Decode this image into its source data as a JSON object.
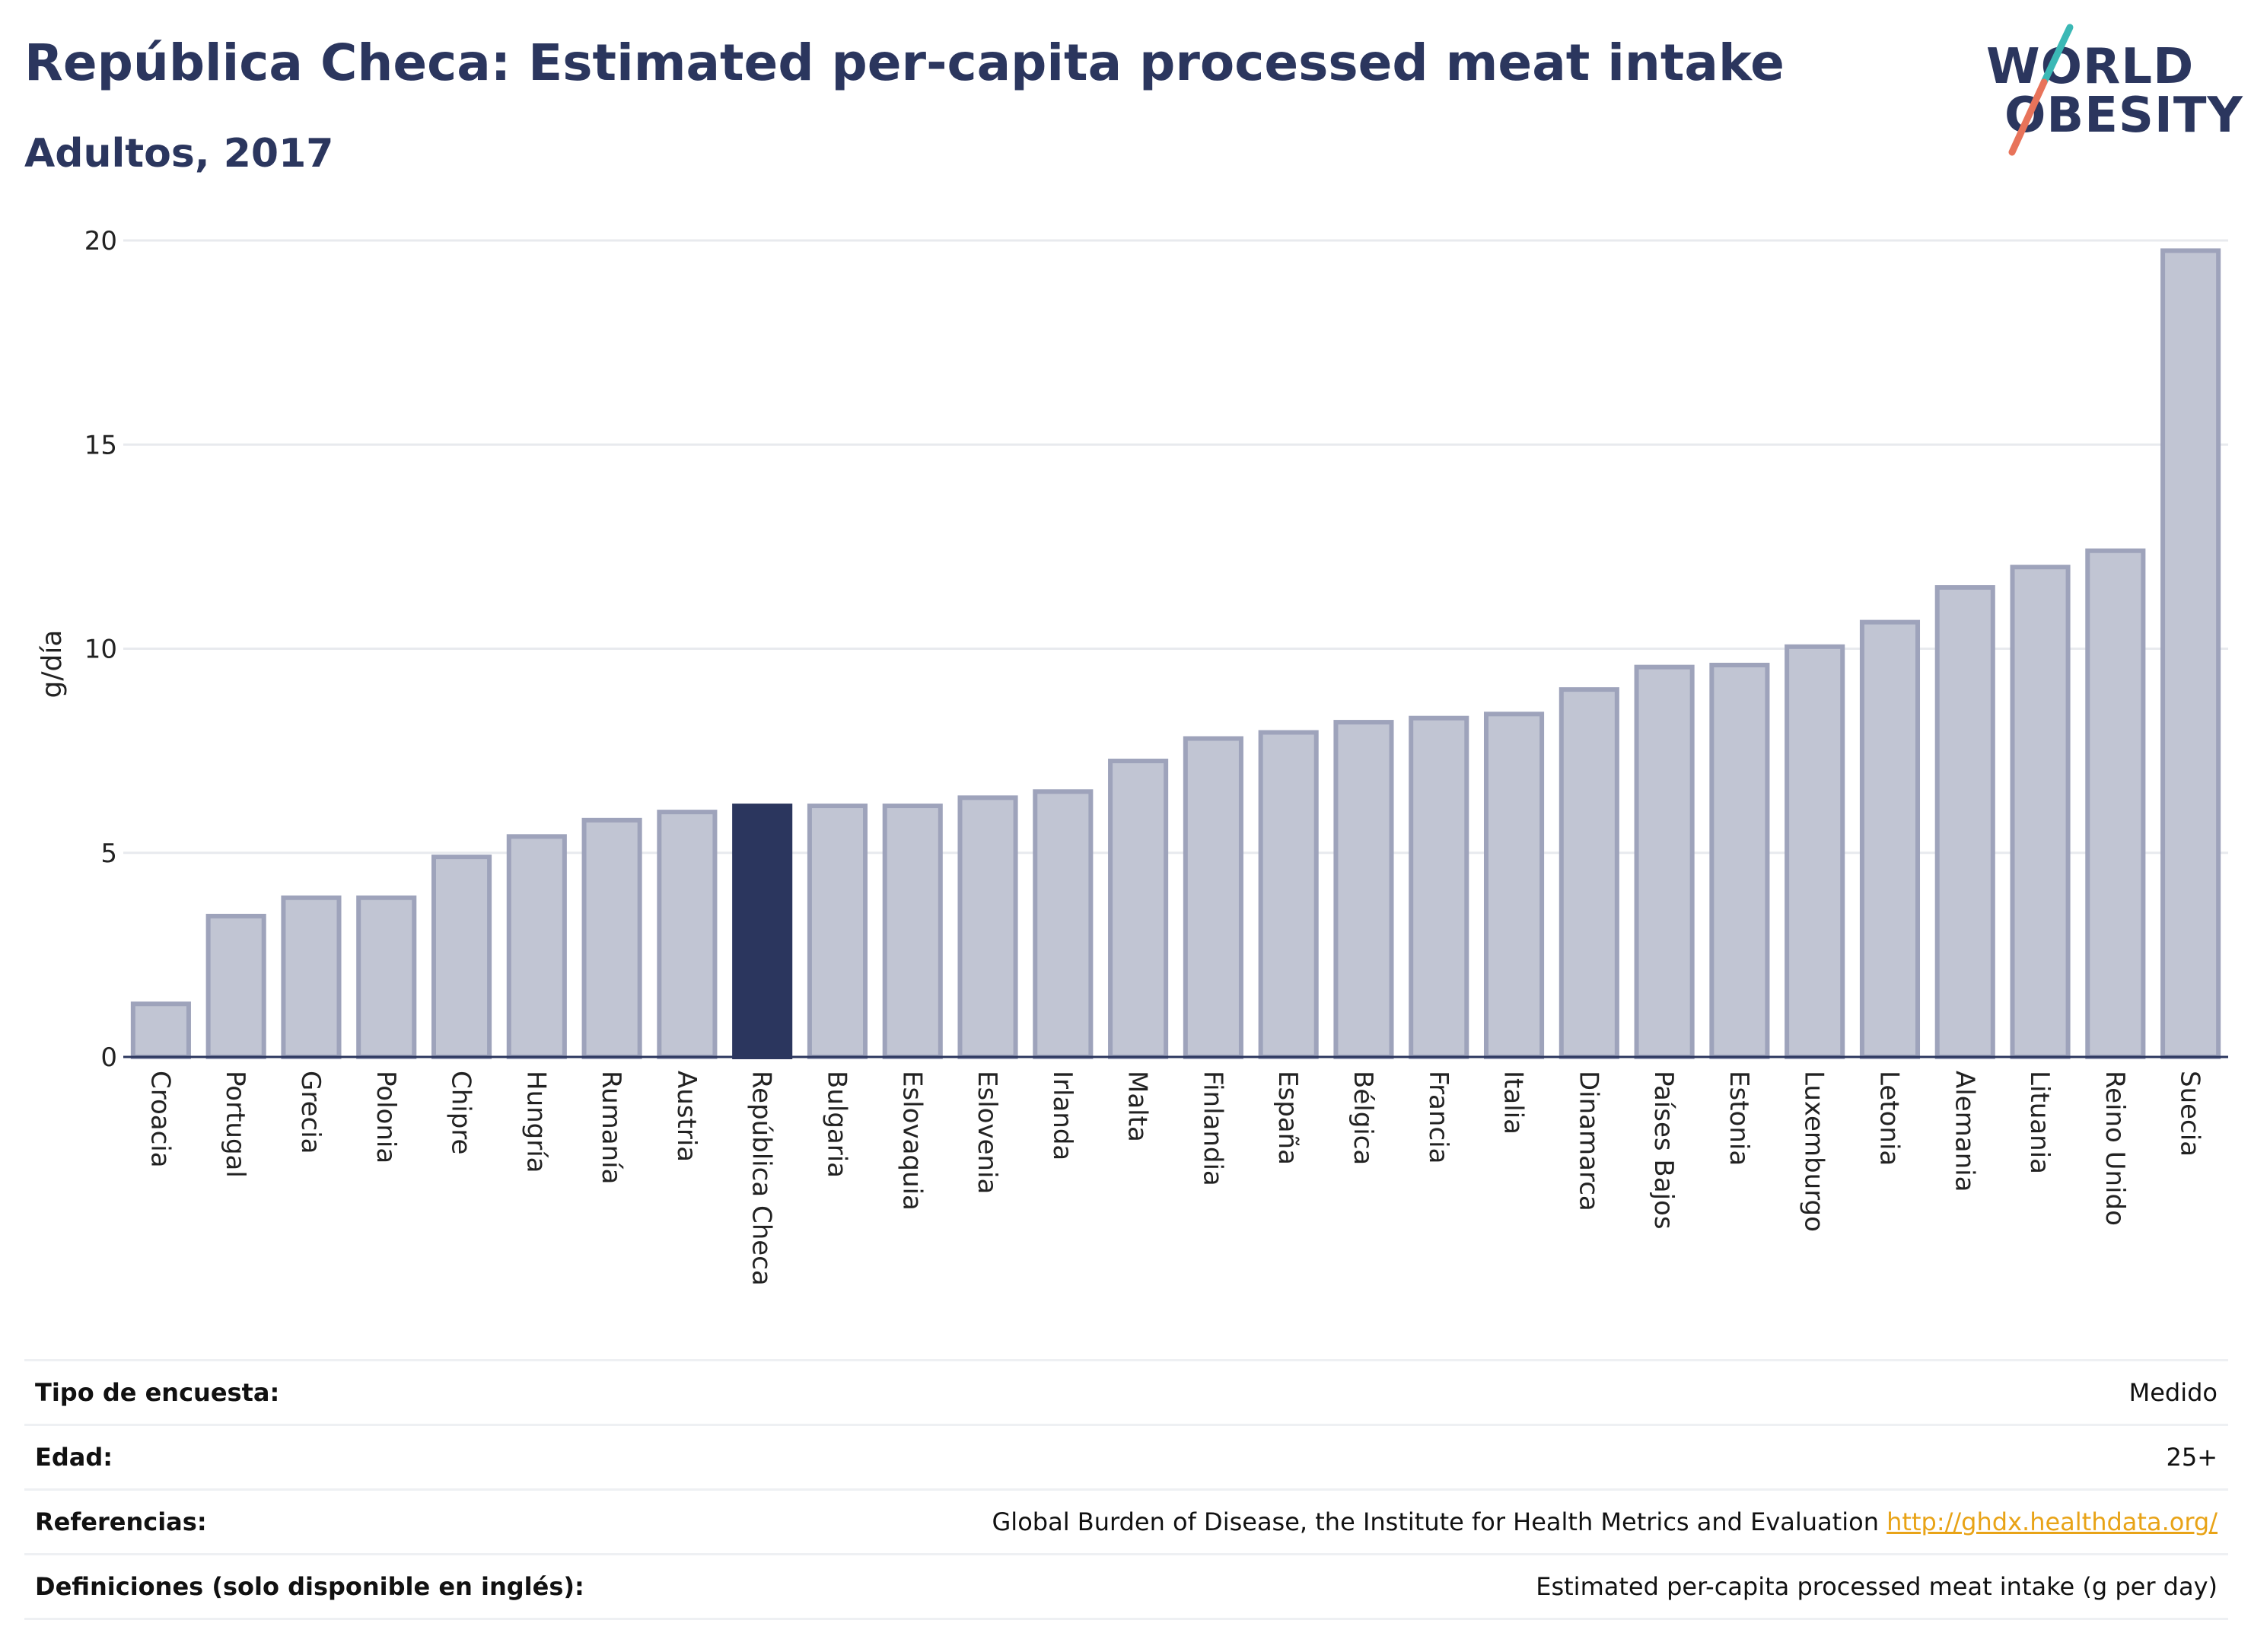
{
  "header": {
    "title": "República Checa: Estimated per-capita processed meat intake",
    "subtitle": "Adultos, 2017"
  },
  "logo": {
    "line1": "WORLD",
    "line2": "OBESITY"
  },
  "colors": {
    "highlight": "#2b365e",
    "bar": "#c1c5d3",
    "bar_border": "#9ea3bb",
    "grid": "#e8eaee",
    "link": "#e8a317"
  },
  "chart_data": {
    "type": "bar",
    "ylabel": "g/día",
    "ylim": [
      0,
      20
    ],
    "yticks": [
      0,
      5,
      10,
      15,
      20
    ],
    "highlight": "República Checa",
    "categories": [
      "Croacia",
      "Portugal",
      "Grecia",
      "Polonia",
      "Chipre",
      "Hungría",
      "Rumanía",
      "Austria",
      "República Checa",
      "Bulgaria",
      "Eslovaquia",
      "Eslovenia",
      "Irlanda",
      "Malta",
      "Finlandia",
      "España",
      "Bélgica",
      "Francia",
      "Italia",
      "Dinamarca",
      "Países Bajos",
      "Estonia",
      "Luxemburgo",
      "Letonia",
      "Alemania",
      "Lituania",
      "Reino Unido",
      "Suecia"
    ],
    "values": [
      1.3,
      3.45,
      3.9,
      3.9,
      4.9,
      5.4,
      5.8,
      6.0,
      6.15,
      6.15,
      6.15,
      6.35,
      6.5,
      7.25,
      7.8,
      7.95,
      8.2,
      8.3,
      8.4,
      9.0,
      9.55,
      9.6,
      10.05,
      10.65,
      11.5,
      12.0,
      12.4,
      19.75
    ]
  },
  "info": {
    "survey_type": {
      "label": "Tipo de encuesta:",
      "value": "Medido"
    },
    "age": {
      "label": "Edad:",
      "value": "25+"
    },
    "references": {
      "label": "Referencias:",
      "value": "Global Burden of Disease, the Institute for Health Metrics and Evaluation",
      "link": "http://ghdx.healthdata.org/"
    },
    "definitions": {
      "label": "Definiciones (solo disponible en inglés):",
      "value": "Estimated per-capita processed meat intake (g per day)"
    }
  }
}
